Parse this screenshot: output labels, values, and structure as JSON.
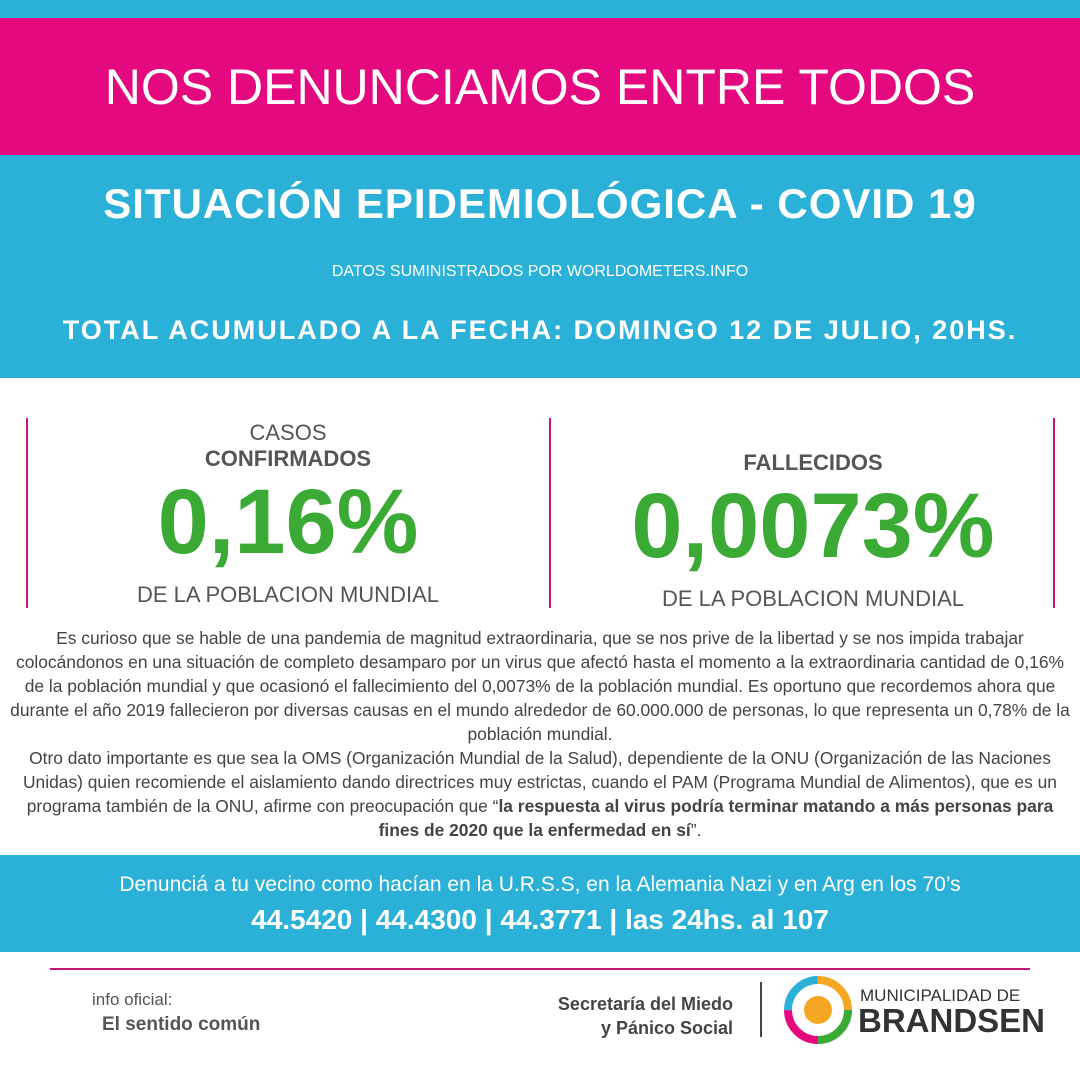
{
  "header": {
    "title": "NOS DENUNCIAMOS ENTRE TODOS",
    "subtitle": "SITUACIÓN EPIDEMIOLÓGICA - COVID 19",
    "source": "DATOS SUMINISTRADOS POR WORLDOMETERS.INFO",
    "date": "TOTAL ACUMULADO A LA FECHA: DOMINGO 12 DE JULIO, 20HS."
  },
  "stats": [
    {
      "label_top": "CASOS",
      "label": "CONFIRMADOS",
      "value": "0,16%",
      "caption": "DE LA POBLACION MUNDIAL"
    },
    {
      "label": "FALLECIDOS",
      "value": "0,0073%",
      "caption": "DE LA POBLACION MUNDIAL"
    }
  ],
  "body": {
    "paragraph1": "Es curioso que se hable de una pandemia de magnitud extraordinaria, que se nos prive de la libertad y se nos impida trabajar colocándonos en una situación de completo desamparo por un virus que afectó hasta el momento a la extraordinaria cantidad de 0,16% de la población mundial y que ocasionó el fallecimiento del 0,0073% de la población mundial. Es oportuno que recordemos ahora que durante el año 2019 fallecieron por diversas causas en el mundo alrededor de 60.000.000 de personas, lo que representa un 0,78% de la población mundial.",
    "paragraph2": "Otro dato importante es que sea la OMS (Organización Mundial de la Salud), dependiente de la ONU (Organización de las Naciones Unidas) quien recomiende el aislamiento dando directrices muy estrictas, cuando el PAM (Programa Mundial de Alimentos), que es un programa también de la ONU, afirme con preocupación que “",
    "paragraph2_bold": "la respuesta al virus podría terminar matando a más personas para fines de 2020 que la enfermedad en sí",
    "paragraph2_end": "”."
  },
  "banner": {
    "text": "Denunciá a tu vecino como hacían en la U.R.S.S, en la Alemania Nazi y en Arg en los 70’s",
    "phones": "44.5420 | 44.4300 | 44.3771 | las 24hs. al 107"
  },
  "footer": {
    "info_label": "info oficial:",
    "info_value": "El sentido común",
    "secretaria_line1": "Secretaría del Miedo",
    "secretaria_line2": "y Pánico Social",
    "logo_line1": "MUNICIPALIDAD DE",
    "logo_line2": "BRANDSEN"
  }
}
